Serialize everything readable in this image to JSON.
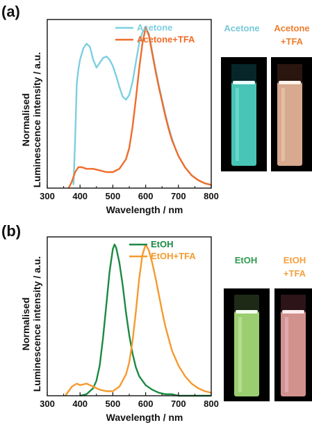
{
  "panels": [
    {
      "label": "(a)",
      "xlabel": "Wavelength / nm",
      "ylabel_line1": "Normalised",
      "ylabel_line2": "Luminescence intensity / a.u.",
      "photo_labels": [
        {
          "line1": "Acetone",
          "line2": "",
          "color": "#78c8d8"
        },
        {
          "line1": "Acetone",
          "line2": "+TFA",
          "color": "#f07d2e"
        }
      ],
      "vial_colors": [
        "#4ed6c6",
        "#e9b79a"
      ]
    },
    {
      "label": "(b)",
      "xlabel": "Wavelength / nm",
      "ylabel_line1": "Normalised",
      "ylabel_line2": "Luminescence intensity / a.u.",
      "photo_labels": [
        {
          "line1": "EtOH",
          "line2": "",
          "color": "#2e9a4e"
        },
        {
          "line1": "EtOH",
          "line2": "+TFA",
          "color": "#f5a040"
        }
      ],
      "vial_colors": [
        "#a8e07a",
        "#e39e9a"
      ]
    }
  ],
  "chart_data": [
    {
      "type": "line",
      "xlabel": "Wavelength / nm",
      "ylabel": "Normalised Luminescence intensity / a.u.",
      "xlim": [
        300,
        800
      ],
      "ylim": [
        0,
        1.05
      ],
      "xticks": [
        300,
        400,
        500,
        600,
        700,
        800
      ],
      "grid": false,
      "legend_position": "top-right",
      "series": [
        {
          "name": "Acetone",
          "color": "#7ccfe1",
          "x": [
            380,
            385,
            390,
            395,
            400,
            410,
            420,
            430,
            440,
            450,
            460,
            470,
            480,
            490,
            500,
            510,
            520,
            530,
            540,
            550,
            560,
            570,
            580,
            590,
            600,
            610,
            620,
            630,
            640,
            650,
            660,
            670,
            680,
            690,
            700,
            720,
            740,
            760,
            780,
            800
          ],
          "y": [
            0.02,
            0.3,
            0.65,
            0.74,
            0.8,
            0.87,
            0.9,
            0.88,
            0.8,
            0.75,
            0.78,
            0.81,
            0.82,
            0.8,
            0.76,
            0.7,
            0.63,
            0.57,
            0.55,
            0.58,
            0.66,
            0.78,
            0.9,
            0.97,
            1.0,
            0.96,
            0.85,
            0.74,
            0.64,
            0.55,
            0.46,
            0.38,
            0.31,
            0.25,
            0.2,
            0.13,
            0.08,
            0.05,
            0.03,
            0.02
          ]
        },
        {
          "name": "Acetone+TFA",
          "color": "#f06c2a",
          "x": [
            365,
            375,
            385,
            395,
            405,
            420,
            440,
            460,
            480,
            500,
            520,
            540,
            550,
            560,
            570,
            580,
            590,
            600,
            610,
            620,
            630,
            640,
            650,
            660,
            670,
            680,
            690,
            700,
            720,
            740,
            760,
            780,
            800
          ],
          "y": [
            0.0,
            0.04,
            0.1,
            0.13,
            0.13,
            0.12,
            0.12,
            0.11,
            0.1,
            0.1,
            0.12,
            0.18,
            0.25,
            0.38,
            0.55,
            0.74,
            0.9,
            1.0,
            0.95,
            0.84,
            0.73,
            0.63,
            0.54,
            0.45,
            0.37,
            0.3,
            0.25,
            0.2,
            0.13,
            0.08,
            0.05,
            0.03,
            0.02
          ]
        }
      ]
    },
    {
      "type": "line",
      "xlabel": "Wavelength / nm",
      "ylabel": "Normalised Luminescence intensity / a.u.",
      "xlim": [
        300,
        800
      ],
      "ylim": [
        0,
        1.05
      ],
      "xticks": [
        300,
        400,
        500,
        600,
        700,
        800
      ],
      "grid": false,
      "legend_position": "top-right",
      "series": [
        {
          "name": "EtOH",
          "color": "#1a8a42",
          "x": [
            400,
            420,
            440,
            450,
            460,
            470,
            480,
            490,
            500,
            505,
            510,
            520,
            530,
            540,
            550,
            560,
            570,
            580,
            600,
            620,
            640,
            660,
            680,
            700,
            740,
            780,
            800
          ],
          "y": [
            0.0,
            0.01,
            0.05,
            0.1,
            0.2,
            0.38,
            0.6,
            0.82,
            0.97,
            1.0,
            0.98,
            0.88,
            0.73,
            0.55,
            0.4,
            0.28,
            0.19,
            0.13,
            0.07,
            0.04,
            0.02,
            0.01,
            0.01,
            0.0,
            0.0,
            0.0,
            0.0
          ]
        },
        {
          "name": "EtOH+TFA",
          "color": "#f59a2e",
          "x": [
            355,
            365,
            375,
            390,
            400,
            420,
            440,
            460,
            480,
            500,
            520,
            540,
            550,
            560,
            570,
            580,
            590,
            600,
            610,
            620,
            630,
            640,
            650,
            660,
            670,
            680,
            700,
            720,
            740,
            760,
            780,
            800
          ],
          "y": [
            0.0,
            0.03,
            0.06,
            0.08,
            0.07,
            0.08,
            0.06,
            0.04,
            0.03,
            0.03,
            0.06,
            0.14,
            0.22,
            0.36,
            0.55,
            0.77,
            0.93,
            1.0,
            0.96,
            0.88,
            0.78,
            0.67,
            0.56,
            0.46,
            0.38,
            0.3,
            0.2,
            0.13,
            0.08,
            0.05,
            0.03,
            0.02
          ]
        }
      ]
    }
  ]
}
